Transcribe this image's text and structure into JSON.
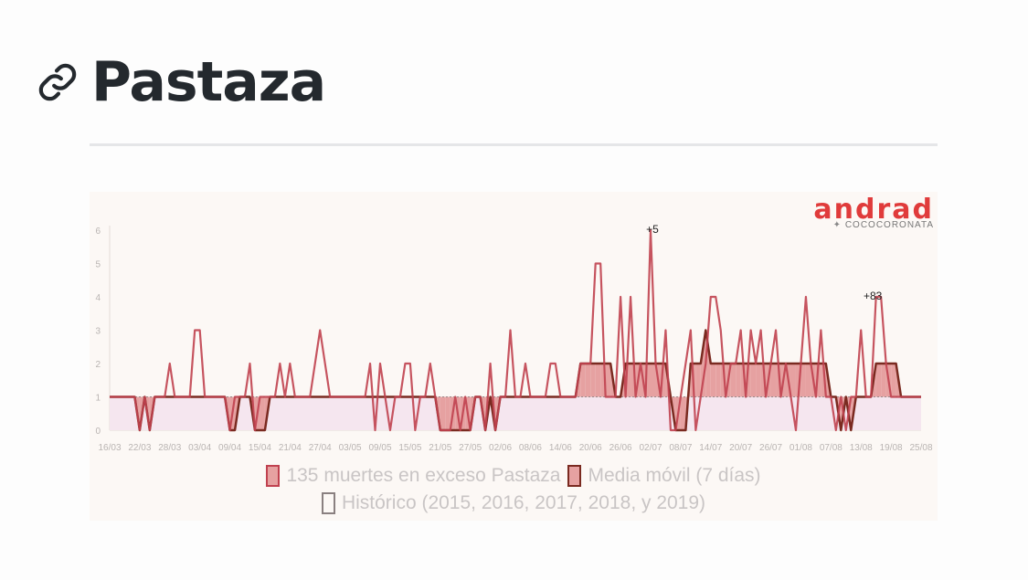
{
  "page": {
    "title": "Pastaza"
  },
  "brand": {
    "name": "andrad",
    "handle": "COCOCORONATA"
  },
  "chart_data": {
    "type": "line",
    "x_tick_labels": [
      "16/03",
      "22/03",
      "28/03",
      "03/04",
      "09/04",
      "15/04",
      "21/04",
      "27/04",
      "03/05",
      "09/05",
      "15/05",
      "21/05",
      "27/05",
      "02/06",
      "08/06",
      "14/06",
      "20/06",
      "26/06",
      "02/07",
      "08/07",
      "14/07",
      "20/07",
      "26/07",
      "01/08",
      "07/08",
      "13/08",
      "19/08",
      "25/08"
    ],
    "ylim": [
      0,
      6
    ],
    "y_ticks": [
      0,
      1,
      2,
      3,
      4,
      5,
      6
    ],
    "annotations": [
      {
        "text": "+5",
        "x_index": 108,
        "y": 6
      },
      {
        "text": "+83",
        "x_index": 152,
        "y": 4
      }
    ],
    "legend": [
      {
        "label": "135 muertes en exceso Pastaza",
        "color": "#c0414f"
      },
      {
        "label": "Media móvil (7 días)",
        "color": "#7a2a20"
      },
      {
        "label": "Histórico (2015, 2016, 2017, 2018, y 2019)",
        "color": "#8a8080"
      }
    ],
    "colors": {
      "daily": "#c0414f",
      "moving_avg": "#7a2a20",
      "excess_fill": "#e6a1a1",
      "historic_fill": "#f5e6ef"
    },
    "historic": [
      1,
      1,
      1,
      1,
      1,
      1,
      1,
      1,
      1,
      1,
      1,
      1,
      1,
      1,
      1,
      1,
      1,
      1,
      1,
      1,
      1,
      1,
      1,
      1,
      1,
      1,
      1,
      1,
      1,
      1,
      1,
      1,
      1,
      1,
      1,
      1,
      1,
      1,
      1,
      1,
      1,
      1,
      1,
      1,
      1,
      1,
      1,
      1,
      1,
      1,
      1,
      1,
      1,
      1,
      1,
      1,
      1,
      1,
      1,
      1,
      1,
      1,
      1,
      1,
      1,
      1,
      1,
      1,
      1,
      1,
      1,
      1,
      1,
      1,
      1,
      1,
      1,
      1,
      1,
      1,
      1,
      1,
      1,
      1,
      1,
      1,
      1,
      1,
      1,
      1,
      1,
      1,
      1,
      1,
      1,
      1,
      1,
      1,
      1,
      1,
      1,
      1,
      1,
      1,
      1,
      1,
      1,
      1,
      1,
      1,
      1,
      1,
      1,
      1,
      1,
      1,
      1,
      1,
      1,
      1,
      1,
      1,
      1,
      1,
      1,
      1,
      1,
      1,
      1,
      1,
      1,
      1,
      1,
      1,
      1,
      1,
      1,
      1,
      1,
      1,
      1,
      1,
      1,
      1,
      1,
      1,
      1,
      1,
      1,
      1,
      1,
      1,
      1,
      1,
      1,
      1,
      1,
      1,
      1,
      1,
      1,
      1,
      1
    ],
    "daily": [
      1,
      1,
      1,
      1,
      1,
      1,
      0,
      1,
      0,
      1,
      1,
      1,
      2,
      1,
      1,
      1,
      1,
      3,
      3,
      1,
      1,
      1,
      1,
      1,
      0,
      1,
      1,
      1,
      2,
      0,
      1,
      1,
      1,
      1,
      2,
      1,
      2,
      1,
      1,
      1,
      1,
      2,
      3,
      2,
      1,
      1,
      1,
      1,
      1,
      1,
      1,
      1,
      2,
      0,
      2,
      1,
      0,
      1,
      1,
      2,
      2,
      0,
      1,
      1,
      2,
      1,
      0,
      0,
      0,
      1,
      0,
      1,
      0,
      1,
      1,
      0,
      2,
      0,
      1,
      1,
      3,
      1,
      1,
      2,
      1,
      1,
      1,
      1,
      2,
      2,
      1,
      1,
      1,
      1,
      2,
      2,
      2,
      5,
      5,
      1,
      1,
      1,
      4,
      1,
      4,
      1,
      2,
      1,
      6,
      2,
      1,
      3,
      0,
      0,
      1,
      2,
      3,
      0,
      1,
      2,
      4,
      4,
      3,
      1,
      2,
      2,
      3,
      1,
      3,
      2,
      3,
      1,
      2,
      3,
      1,
      2,
      1,
      0,
      2,
      4,
      2,
      1,
      3,
      1,
      1,
      0,
      1,
      0,
      1,
      1,
      3,
      1,
      1,
      4,
      4,
      2,
      1,
      1,
      1,
      1,
      1,
      1,
      1
    ],
    "moving_avg": [
      1,
      1,
      1,
      1,
      1,
      1,
      0,
      1,
      0,
      1,
      1,
      1,
      1,
      1,
      1,
      1,
      1,
      1,
      1,
      1,
      1,
      1,
      1,
      1,
      0,
      0,
      1,
      1,
      1,
      0,
      0,
      0,
      1,
      1,
      1,
      1,
      1,
      1,
      1,
      1,
      1,
      1,
      1,
      1,
      1,
      1,
      1,
      1,
      1,
      1,
      1,
      1,
      1,
      1,
      1,
      1,
      1,
      1,
      1,
      1,
      1,
      1,
      1,
      1,
      1,
      1,
      0,
      0,
      0,
      0,
      0,
      0,
      0,
      1,
      1,
      0,
      1,
      0,
      1,
      1,
      1,
      1,
      1,
      1,
      1,
      1,
      1,
      1,
      1,
      1,
      1,
      1,
      1,
      1,
      2,
      2,
      2,
      2,
      2,
      2,
      2,
      1,
      1,
      2,
      2,
      2,
      2,
      2,
      2,
      2,
      2,
      2,
      1,
      0,
      0,
      0,
      2,
      2,
      2,
      3,
      2,
      2,
      2,
      2,
      2,
      2,
      2,
      2,
      2,
      2,
      2,
      2,
      2,
      2,
      2,
      2,
      2,
      2,
      2,
      2,
      2,
      2,
      2,
      2,
      1,
      1,
      0,
      1,
      0,
      1,
      1,
      1,
      1,
      2,
      2,
      2,
      2,
      2,
      1,
      1,
      1,
      1,
      1
    ]
  }
}
